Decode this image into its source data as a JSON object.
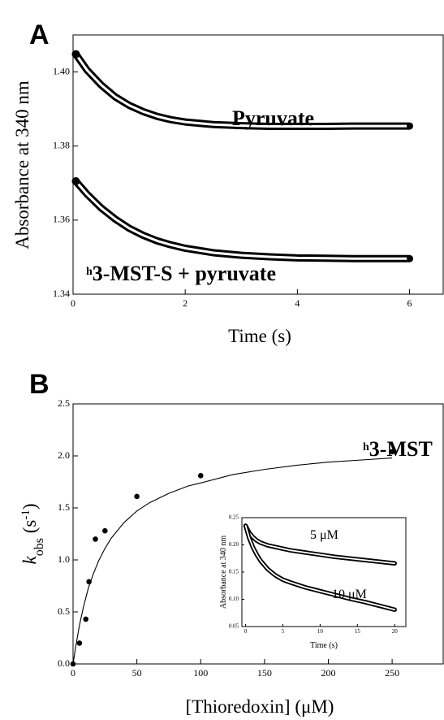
{
  "chart_data": [
    {
      "panel": "A",
      "type": "line",
      "xlabel": "Time (s)",
      "ylabel": "Absorbance at 340 nm",
      "xlim": [
        0,
        6.6
      ],
      "ylim": [
        1.34,
        1.41
      ],
      "xticks": [
        {
          "v": 0,
          "t": "0"
        },
        {
          "v": 2,
          "t": "2"
        },
        {
          "v": 4,
          "t": "4"
        },
        {
          "v": 6,
          "t": "6"
        }
      ],
      "yticks": [
        {
          "v": 1.34,
          "t": "1.34"
        },
        {
          "v": 1.36,
          "t": "1.36"
        },
        {
          "v": 1.38,
          "t": "1.38"
        },
        {
          "v": 1.4,
          "t": "1.40"
        }
      ],
      "series": [
        {
          "name": "Pyruvate",
          "name_sup": "",
          "x": [
            0.05,
            0.25,
            0.5,
            0.75,
            1.0,
            1.25,
            1.5,
            1.75,
            2.0,
            2.5,
            3.0,
            3.5,
            4.0,
            4.5,
            5.0,
            5.5,
            6.0
          ],
          "y": [
            1.4048,
            1.4005,
            1.3965,
            1.3933,
            1.391,
            1.3893,
            1.388,
            1.3871,
            1.3865,
            1.3858,
            1.3855,
            1.3853,
            1.3853,
            1.3853,
            1.3854,
            1.3854,
            1.3854
          ]
        },
        {
          "name": "3-MST-S + pyruvate",
          "name_sup": "h",
          "x": [
            0.05,
            0.25,
            0.5,
            0.75,
            1.0,
            1.25,
            1.5,
            1.75,
            2.0,
            2.5,
            3.0,
            3.5,
            4.0,
            4.5,
            5.0,
            5.5,
            6.0
          ],
          "y": [
            1.3705,
            1.367,
            1.3633,
            1.3603,
            1.3578,
            1.3559,
            1.3544,
            1.3533,
            1.3524,
            1.3512,
            1.3505,
            1.3501,
            1.3498,
            1.3497,
            1.3496,
            1.3496,
            1.3496
          ]
        }
      ]
    },
    {
      "panel": "B",
      "type": "scatter",
      "xlabel": "[Thioredoxin] (μM)",
      "ylabel_k": "k",
      "ylabel_sub": "obs",
      "ylabel_units": " (s",
      "ylabel_sup": "-1",
      "ylabel_close": ")",
      "xlim": [
        0,
        290
      ],
      "ylim": [
        0,
        2.5
      ],
      "xticks": [
        {
          "v": 0,
          "t": "0"
        },
        {
          "v": 50,
          "t": "50"
        },
        {
          "v": 100,
          "t": "100"
        },
        {
          "v": 150,
          "t": "150"
        },
        {
          "v": 200,
          "t": "200"
        },
        {
          "v": 250,
          "t": "250"
        }
      ],
      "yticks": [
        {
          "v": 0,
          "t": "0.0"
        },
        {
          "v": 0.5,
          "t": "0.5"
        },
        {
          "v": 1.0,
          "t": "1.0"
        },
        {
          "v": 1.5,
          "t": "1.5"
        },
        {
          "v": 2.0,
          "t": "2.0"
        },
        {
          "v": 2.5,
          "t": "2.5"
        }
      ],
      "annotation": "3-MST",
      "annotation_sup": "h",
      "points": {
        "x": [
          0,
          5,
          10,
          12.5,
          17.5,
          25,
          50,
          100,
          250
        ],
        "y": [
          0.0,
          0.2,
          0.43,
          0.79,
          1.2,
          1.28,
          1.61,
          1.81,
          2.04
        ]
      },
      "fit": {
        "x": [
          0,
          2,
          5,
          8,
          12,
          16,
          20,
          25,
          30,
          40,
          50,
          60,
          75,
          90,
          100,
          125,
          150,
          175,
          200,
          225,
          250
        ],
        "y": [
          0.0,
          0.16,
          0.37,
          0.54,
          0.73,
          0.87,
          0.99,
          1.11,
          1.21,
          1.36,
          1.47,
          1.55,
          1.64,
          1.71,
          1.74,
          1.82,
          1.87,
          1.91,
          1.94,
          1.96,
          1.98
        ]
      },
      "inset": {
        "type": "line",
        "xlabel": "Time (s)",
        "ylabel": "Absorbance at 340 nm",
        "xlim": [
          -0.5,
          21.5
        ],
        "ylim": [
          0.05,
          0.25
        ],
        "xticks": [
          {
            "v": 0,
            "t": "0"
          },
          {
            "v": 5,
            "t": "5"
          },
          {
            "v": 10,
            "t": "10"
          },
          {
            "v": 15,
            "t": "15"
          },
          {
            "v": 20,
            "t": "20"
          }
        ],
        "yticks": [
          {
            "v": 0.05,
            "t": "0.05"
          },
          {
            "v": 0.1,
            "t": "0.10"
          },
          {
            "v": 0.15,
            "t": "0.15"
          },
          {
            "v": 0.2,
            "t": "0.20"
          },
          {
            "v": 0.25,
            "t": "0.25"
          }
        ],
        "series": [
          {
            "name": "5 μM",
            "x": [
              0,
              0.5,
              1,
              1.5,
              2,
              3,
              4,
              5,
              6,
              8,
              10,
              12,
              14,
              16,
              18,
              20
            ],
            "y": [
              0.235,
              0.222,
              0.214,
              0.208,
              0.204,
              0.199,
              0.196,
              0.193,
              0.19,
              0.186,
              0.182,
              0.178,
              0.175,
              0.172,
              0.169,
              0.166
            ]
          },
          {
            "name": "10 μM",
            "x": [
              0,
              0.5,
              1,
              1.5,
              2,
              3,
              4,
              5,
              6,
              8,
              10,
              12,
              14,
              16,
              18,
              20
            ],
            "y": [
              0.235,
              0.212,
              0.195,
              0.182,
              0.171,
              0.155,
              0.144,
              0.136,
              0.131,
              0.122,
              0.115,
              0.108,
              0.101,
              0.095,
              0.088,
              0.081
            ]
          }
        ]
      }
    }
  ]
}
